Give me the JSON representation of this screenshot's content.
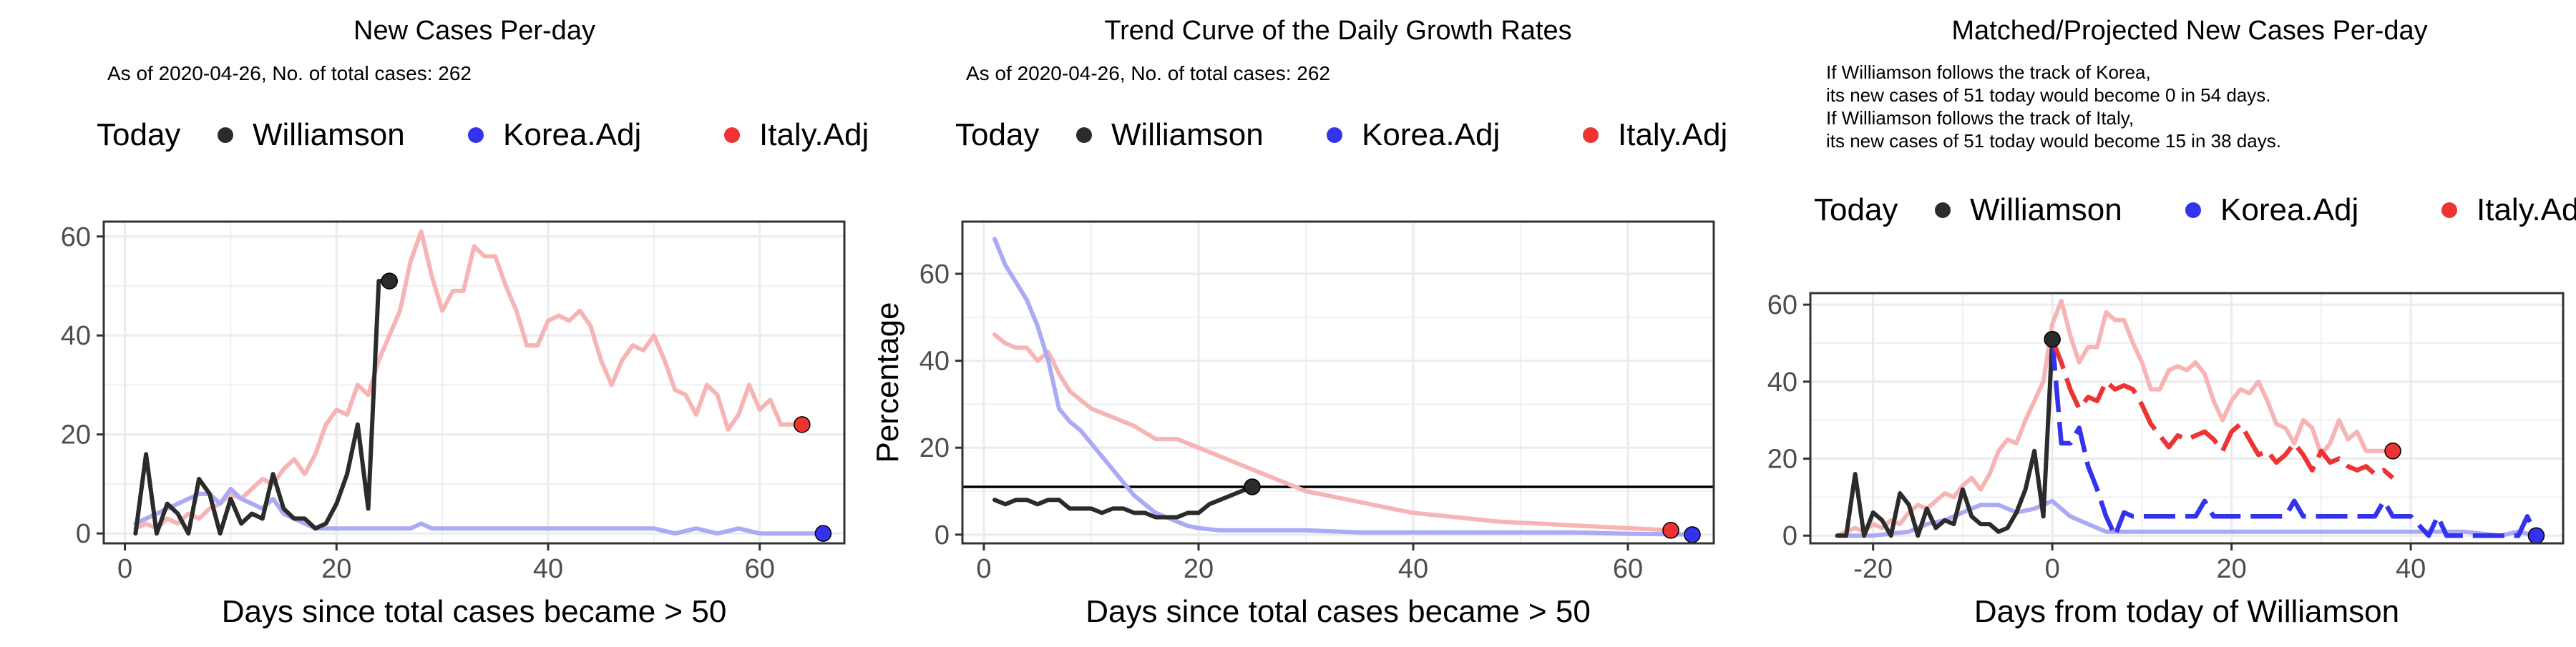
{
  "colors": {
    "williamson": "#2b2b2b",
    "korea": "#3333ee",
    "italy": "#ee3333",
    "korea_light": "#aaaaf5",
    "italy_light": "#f7b4b4",
    "grid": "#ebebeb",
    "panel_border": "#333333"
  },
  "legend_labels": {
    "title": "Today",
    "williamson": "Williamson",
    "korea": "Korea.Adj",
    "italy": "Italy.Adj"
  },
  "chart_data": [
    {
      "type": "line",
      "title": "New Cases Per-day",
      "subtitle": [
        "As of 2020-04-26, No. of total cases: 262"
      ],
      "xlabel": "Days since total cases became > 50",
      "ylabel": "",
      "xlim": [
        -2,
        68
      ],
      "ylim": [
        -2,
        63
      ],
      "xticks": [
        0,
        20,
        40,
        60
      ],
      "yticks": [
        0,
        20,
        40,
        60
      ],
      "legend_position": "top",
      "grid": true,
      "series": [
        {
          "name": "Italy.Adj",
          "role": "italy_light",
          "x": [
            1,
            2,
            3,
            4,
            5,
            6,
            7,
            8,
            9,
            10,
            11,
            12,
            13,
            14,
            15,
            16,
            17,
            18,
            19,
            20,
            21,
            22,
            23,
            24,
            25,
            26,
            27,
            28,
            29,
            30,
            31,
            32,
            33,
            34,
            35,
            36,
            37,
            38,
            39,
            40,
            41,
            42,
            43,
            44,
            45,
            46,
            47,
            48,
            49,
            50,
            51,
            52,
            53,
            54,
            55,
            56,
            57,
            58,
            59,
            60,
            61,
            62,
            63,
            64
          ],
          "y": [
            1,
            2,
            1,
            3,
            2,
            4,
            3,
            5,
            6,
            8,
            7,
            9,
            11,
            10,
            13,
            15,
            12,
            16,
            22,
            25,
            24,
            30,
            28,
            35,
            40,
            45,
            55,
            61,
            52,
            45,
            49,
            49,
            58,
            56,
            56,
            50,
            45,
            38,
            38,
            43,
            44,
            43,
            45,
            42,
            35,
            30,
            35,
            38,
            37,
            40,
            35,
            29,
            28,
            24,
            30,
            28,
            21,
            24,
            30,
            25,
            27,
            22,
            22,
            22
          ]
        },
        {
          "name": "Korea.Adj",
          "role": "korea_light",
          "x": [
            1,
            2,
            3,
            4,
            5,
            6,
            7,
            8,
            9,
            10,
            11,
            12,
            13,
            14,
            15,
            16,
            17,
            18,
            19,
            20,
            21,
            22,
            23,
            24,
            25,
            26,
            27,
            28,
            29,
            30,
            32,
            34,
            36,
            38,
            40,
            42,
            44,
            46,
            48,
            50,
            52,
            54,
            56,
            58,
            60,
            62,
            64,
            66
          ],
          "y": [
            2,
            3,
            4,
            5,
            6,
            7,
            8,
            8,
            6,
            9,
            7,
            6,
            5,
            7,
            4,
            3,
            2,
            1,
            1,
            1,
            1,
            1,
            1,
            1,
            1,
            1,
            1,
            2,
            1,
            1,
            1,
            1,
            1,
            1,
            1,
            1,
            1,
            1,
            1,
            1,
            0,
            1,
            0,
            1,
            0,
            0,
            0,
            0
          ]
        },
        {
          "name": "Williamson",
          "role": "williamson",
          "x": [
            1,
            2,
            3,
            4,
            5,
            6,
            7,
            8,
            9,
            10,
            11,
            12,
            13,
            14,
            15,
            16,
            17,
            18,
            19,
            20,
            21,
            22,
            23,
            24,
            25
          ],
          "y": [
            0,
            16,
            0,
            6,
            4,
            0,
            11,
            8,
            0,
            7,
            2,
            4,
            3,
            12,
            5,
            3,
            3,
            1,
            2,
            6,
            12,
            22,
            5,
            51,
            51
          ]
        }
      ],
      "points": [
        {
          "name": "Williamson",
          "x": 25,
          "y": 51,
          "role": "williamson"
        },
        {
          "name": "Italy.Adj",
          "x": 64,
          "y": 22,
          "role": "italy"
        },
        {
          "name": "Korea.Adj",
          "x": 66,
          "y": 0,
          "role": "korea"
        }
      ]
    },
    {
      "type": "line",
      "title": "Trend Curve of the Daily Growth Rates",
      "subtitle": [
        "As of 2020-04-26, No. of total cases: 262"
      ],
      "xlabel": "Days since total cases became > 50",
      "ylabel": "Percentage",
      "xlim": [
        -2,
        68
      ],
      "ylim": [
        -2,
        72
      ],
      "xticks": [
        0,
        20,
        40,
        60
      ],
      "yticks": [
        0,
        20,
        40,
        60
      ],
      "hline": 11,
      "legend_position": "top",
      "grid": true,
      "series": [
        {
          "name": "Italy.Adj",
          "role": "italy_light",
          "x": [
            1,
            2,
            3,
            4,
            5,
            6,
            7,
            8,
            10,
            12,
            14,
            16,
            18,
            20,
            22,
            24,
            26,
            28,
            30,
            32,
            34,
            36,
            38,
            40,
            44,
            48,
            52,
            56,
            60,
            64
          ],
          "y": [
            46,
            44,
            43,
            43,
            40,
            42,
            37,
            33,
            29,
            27,
            25,
            22,
            22,
            20,
            18,
            16,
            14,
            12,
            10,
            9,
            8,
            7,
            6,
            5,
            4,
            3,
            2.5,
            2,
            1.5,
            1
          ]
        },
        {
          "name": "Korea.Adj",
          "role": "korea_light",
          "x": [
            1,
            2,
            3,
            4,
            5,
            6,
            7,
            8,
            9,
            10,
            11,
            12,
            13,
            14,
            15,
            16,
            17,
            18,
            19,
            20,
            22,
            24,
            26,
            30,
            35,
            40,
            45,
            50,
            55,
            60,
            66
          ],
          "y": [
            68,
            62,
            58,
            54,
            48,
            40,
            29,
            26,
            24,
            21,
            18,
            15,
            12,
            9,
            7,
            5,
            4,
            3,
            2,
            1.5,
            1,
            1,
            1,
            1,
            0.5,
            0.5,
            0.5,
            0.5,
            0.5,
            0.2,
            0
          ]
        },
        {
          "name": "Williamson",
          "role": "williamson",
          "x": [
            1,
            2,
            3,
            4,
            5,
            6,
            7,
            8,
            9,
            10,
            11,
            12,
            13,
            14,
            15,
            16,
            17,
            18,
            19,
            20,
            21,
            22,
            23,
            24,
            25
          ],
          "y": [
            8,
            7,
            8,
            8,
            7,
            8,
            8,
            6,
            6,
            6,
            5,
            6,
            6,
            5,
            5,
            4,
            4,
            4,
            5,
            5,
            7,
            8,
            9,
            10,
            11
          ]
        }
      ],
      "points": [
        {
          "name": "Williamson",
          "x": 25,
          "y": 11,
          "role": "williamson"
        },
        {
          "name": "Italy.Adj",
          "x": 64,
          "y": 1,
          "role": "italy"
        },
        {
          "name": "Korea.Adj",
          "x": 66,
          "y": 0,
          "role": "korea"
        }
      ]
    },
    {
      "type": "line",
      "title": "Matched/Projected New Cases Per-day",
      "subtitle": [
        "If Williamson follows the track of Korea,",
        "its new cases of 51 today would become 0 in 54 days.",
        "If Williamson follows the track of Italy,",
        "its new cases of 51 today would become 15 in 38 days."
      ],
      "xlabel": "Days from today of Williamson",
      "ylabel": "",
      "xlim": [
        -27,
        57
      ],
      "ylim": [
        -2,
        63
      ],
      "xticks": [
        -20,
        0,
        20,
        40
      ],
      "yticks": [
        0,
        20,
        40,
        60
      ],
      "legend_position": "top",
      "grid": true,
      "series": [
        {
          "name": "Italy.Adj",
          "role": "italy_light",
          "x": [
            -24,
            -23,
            -22,
            -21,
            -20,
            -19,
            -18,
            -17,
            -16,
            -15,
            -14,
            -13,
            -12,
            -11,
            -10,
            -9,
            -8,
            -7,
            -6,
            -5,
            -4,
            -3,
            -2,
            -1,
            0,
            1,
            2,
            3,
            4,
            5,
            6,
            7,
            8,
            9,
            10,
            11,
            12,
            13,
            14,
            15,
            16,
            17,
            18,
            19,
            20,
            21,
            22,
            23,
            24,
            25,
            26,
            27,
            28,
            29,
            30,
            31,
            32,
            33,
            34,
            35,
            36,
            37,
            38
          ],
          "y": [
            0,
            1,
            2,
            1,
            3,
            2,
            4,
            3,
            6,
            8,
            7,
            9,
            11,
            10,
            13,
            15,
            12,
            16,
            22,
            25,
            24,
            30,
            35,
            40,
            55,
            61,
            52,
            45,
            49,
            49,
            58,
            56,
            56,
            50,
            45,
            38,
            38,
            43,
            44,
            43,
            45,
            42,
            35,
            30,
            35,
            38,
            37,
            40,
            35,
            29,
            28,
            24,
            30,
            28,
            21,
            24,
            30,
            25,
            27,
            22,
            22,
            22,
            22
          ]
        },
        {
          "name": "Korea.Adj",
          "role": "korea_light",
          "x": [
            -24,
            -20,
            -16,
            -14,
            -12,
            -10,
            -9,
            -8,
            -6,
            -4,
            -2,
            0,
            2,
            4,
            6,
            8,
            10,
            14,
            18,
            22,
            26,
            30,
            34,
            38,
            42,
            46,
            50,
            52,
            54
          ],
          "y": [
            0,
            0,
            1,
            3,
            4,
            6,
            7,
            8,
            8,
            6,
            7,
            9,
            5,
            3,
            1,
            1,
            1,
            1,
            1,
            1,
            1,
            1,
            1,
            1,
            1,
            1,
            0,
            1,
            0
          ]
        },
        {
          "name": "Williamson",
          "role": "williamson",
          "x": [
            -24,
            -23,
            -22,
            -21,
            -20,
            -19,
            -18,
            -17,
            -16,
            -15,
            -14,
            -13,
            -12,
            -11,
            -10,
            -9,
            -8,
            -7,
            -6,
            -5,
            -4,
            -3,
            -2,
            -1,
            0
          ],
          "y": [
            0,
            0,
            16,
            0,
            6,
            4,
            0,
            11,
            8,
            0,
            7,
            2,
            4,
            3,
            12,
            5,
            3,
            3,
            1,
            2,
            6,
            12,
            22,
            5,
            51
          ]
        },
        {
          "name": "Korea.Adj",
          "role": "korea_proj",
          "x": [
            0,
            1,
            2,
            3,
            4,
            5,
            6,
            7,
            8,
            9,
            10,
            12,
            14,
            16,
            17,
            18,
            20,
            22,
            24,
            26,
            27,
            28,
            30,
            32,
            34,
            36,
            37,
            38,
            40,
            42,
            43,
            44,
            46,
            48,
            50,
            52,
            53,
            54
          ],
          "y": [
            51,
            24,
            24,
            28,
            18,
            12,
            5,
            0,
            6,
            5,
            5,
            5,
            5,
            5,
            9,
            5,
            5,
            5,
            5,
            5,
            9,
            5,
            5,
            5,
            5,
            5,
            9,
            5,
            5,
            0,
            5,
            0,
            0,
            0,
            0,
            0,
            5,
            0
          ]
        },
        {
          "name": "Italy.Adj",
          "role": "italy_proj",
          "x": [
            0,
            1,
            2,
            3,
            4,
            5,
            6,
            7,
            8,
            9,
            10,
            11,
            12,
            13,
            14,
            15,
            16,
            17,
            18,
            19,
            20,
            21,
            22,
            23,
            24,
            25,
            26,
            27,
            28,
            29,
            30,
            31,
            32,
            33,
            34,
            35,
            36,
            37,
            38
          ],
          "y": [
            51,
            45,
            38,
            33,
            36,
            35,
            40,
            38,
            39,
            38,
            34,
            29,
            26,
            23,
            26,
            25,
            26,
            27,
            25,
            22,
            27,
            29,
            25,
            21,
            22,
            19,
            21,
            24,
            21,
            17,
            22,
            19,
            20,
            18,
            17,
            18,
            16,
            17,
            15
          ]
        }
      ],
      "points": [
        {
          "name": "Williamson",
          "x": 0,
          "y": 51,
          "role": "williamson"
        },
        {
          "name": "Italy.Adj",
          "x": 38,
          "y": 22,
          "role": "italy"
        },
        {
          "name": "Korea.Adj",
          "x": 54,
          "y": 0,
          "role": "korea"
        }
      ]
    }
  ]
}
